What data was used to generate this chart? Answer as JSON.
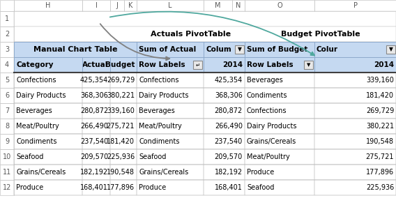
{
  "col_headers": [
    "H",
    "I",
    "J",
    "K",
    "L",
    "M",
    "N",
    "O",
    "P"
  ],
  "manual_table": {
    "title": "Manual Chart Table",
    "headers": [
      "Category",
      "Actual",
      "Budget"
    ],
    "rows": [
      [
        "Confections",
        "425,354",
        "269,729"
      ],
      [
        "Dairy Products",
        "368,306",
        "380,221"
      ],
      [
        "Beverages",
        "280,872",
        "339,160"
      ],
      [
        "Meat/Poultry",
        "266,490",
        "275,721"
      ],
      [
        "Condiments",
        "237,540",
        "181,420"
      ],
      [
        "Seafood",
        "209,570",
        "225,936"
      ],
      [
        "Grains/Cereals",
        "182,192",
        "190,548"
      ],
      [
        "Produce",
        "168,401",
        "177,896"
      ]
    ]
  },
  "actuals_table": {
    "title": "Actuals PivotTable",
    "header_row3_left": "Sum of Actual",
    "header_row3_right": "Colum",
    "header_row4_left": "Row Labels",
    "header_row4_right": "2014",
    "rows": [
      [
        "Confections",
        "425,354"
      ],
      [
        "Dairy Products",
        "368,306"
      ],
      [
        "Beverages",
        "280,872"
      ],
      [
        "Meat/Poultry",
        "266,490"
      ],
      [
        "Condiments",
        "237,540"
      ],
      [
        "Seafood",
        "209,570"
      ],
      [
        "Grains/Cereals",
        "182,192"
      ],
      [
        "Produce",
        "168,401"
      ]
    ]
  },
  "budget_table": {
    "title": "Budget PivotTable",
    "header_row3_left": "Sum of Budget",
    "header_row3_right": "Colur",
    "header_row4_left": "Row Labels",
    "header_row4_right": "2014",
    "rows": [
      [
        "Beverages",
        "339,160"
      ],
      [
        "Condiments",
        "181,420"
      ],
      [
        "Confections",
        "269,729"
      ],
      [
        "Dairy Products",
        "380,221"
      ],
      [
        "Grains/Cereals",
        "190,548"
      ],
      [
        "Meat/Poultry",
        "275,721"
      ],
      [
        "Produce",
        "177,896"
      ],
      [
        "Seafood",
        "225,936"
      ]
    ]
  },
  "table_header_bg": "#c5d9f1",
  "bg_color": "#ffffff",
  "col_header_bg": "#f2f2f2",
  "row_num_color": "#595959",
  "col_letter_color": "#595959",
  "arrow_color_gray": "#808080",
  "arrow_color_teal": "#4fa89e",
  "data_border": "#c0c0c0",
  "header_border": "#8eaacc",
  "dark_border": "#404040",
  "col_header_border": "#c8c8c8"
}
